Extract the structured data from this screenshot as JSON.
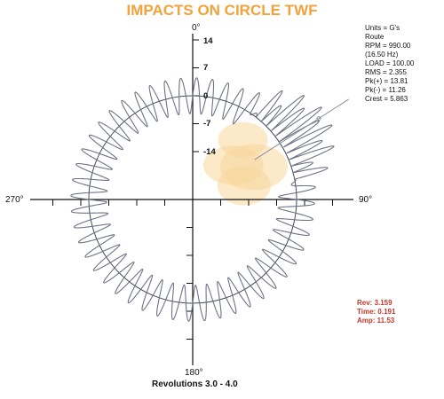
{
  "title": "IMPACTS ON CIRCLE TWF",
  "colors": {
    "title": "#F2A23C",
    "trace": "#6e7386",
    "circle": "#444a5a",
    "highlight": "#F7D79A",
    "cursor_text": "#c0392b",
    "axis": "#111111"
  },
  "info": {
    "units": "Units = G's",
    "route": "Route",
    "rpm": "RPM = 990.00",
    "hz": "(16.50 Hz)",
    "load": "LOAD = 100.00",
    "rms": "RMS = 2.355",
    "pk_pos": "Pk(+) = 13.81",
    "pk_neg": "Pk(-) = 11.26",
    "crest": "Crest = 5.863"
  },
  "cursor": {
    "rev": "Rev: 3.159",
    "time": "Time: 0.191",
    "amp": "Amp: 11.53"
  },
  "footer": "Revolutions 3.0 - 4.0",
  "chart_data": {
    "type": "polar-waveform",
    "title": "IMPACTS ON CIRCLE TWF",
    "angle_labels": {
      "top": "0°",
      "right": "90°",
      "bottom": "180°",
      "left": "270°"
    },
    "radial_ticks": [
      "14",
      "7",
      "0",
      "-7",
      "-14"
    ],
    "radial_tick_values": [
      14,
      7,
      0,
      -7,
      -14
    ],
    "amplitude_range": [
      -14,
      14
    ],
    "units": "G's",
    "revolutions": [
      3.0,
      4.0
    ],
    "baseline_cycles": 48,
    "baseline_amplitude": 4.5,
    "impact_region_degrees": [
      30,
      85
    ],
    "impact_peak_amplitude": 13.81,
    "impact_trough_amplitude": -11.26,
    "cursor": {
      "rev": 3.159,
      "time": 0.191,
      "amp": 11.53
    }
  }
}
